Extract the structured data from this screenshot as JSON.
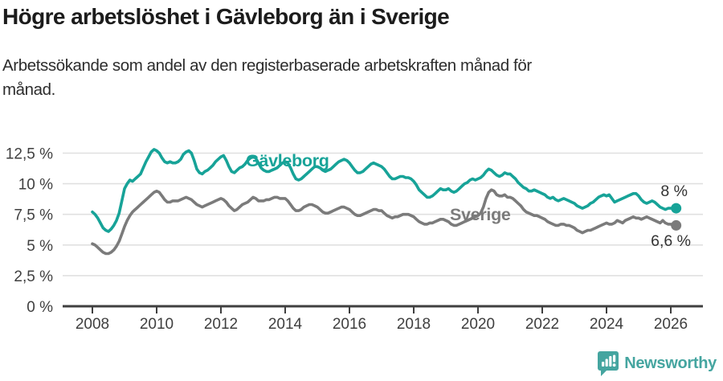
{
  "header": {
    "title": "Högre arbetslöshet i Gävleborg än i Sverige",
    "subtitle_line1": "Arbetssökande som andel av den registerbaserade arbetskraften månad för",
    "subtitle_line2": "månad."
  },
  "footer": {
    "brand": "Newsworthy",
    "logo_icon": "speech-bubble-bar-chart-icon"
  },
  "colors": {
    "gavleborg_teal": "#17A398",
    "sverige_gray": "#7B7B7B",
    "grid": "#E0E0E0",
    "axis": "#3F3F3F",
    "tick_text": "#3F3F3F",
    "end_label_text": "#333333",
    "logo_teal": "#45A5A0"
  },
  "chart_data": {
    "type": "line",
    "title": "Högre arbetslöshet i Gävleborg än i Sverige",
    "subtitle": "Arbetssökande som andel av den registerbaserade arbetskraften månad för månad.",
    "xlabel": "",
    "ylabel": "",
    "frequency": "monthly",
    "x_start": "2008-01",
    "x_end": "2026-03",
    "x_tick_years": [
      2008,
      2010,
      2012,
      2014,
      2016,
      2018,
      2020,
      2022,
      2024,
      2026
    ],
    "y_tick_labels": [
      "0 %",
      "2,5 %",
      "5 %",
      "7,5 %",
      "10 %",
      "12,5 %"
    ],
    "y_tick_values": [
      0,
      2.5,
      5,
      7.5,
      10,
      12.5
    ],
    "ylim": [
      0,
      13.5
    ],
    "grid": true,
    "legend_position": "inline-labels",
    "series": [
      {
        "name": "Gävleborg",
        "color": "#17A398",
        "end_label": "8 %",
        "last_value": 8.0,
        "values": [
          7.7,
          7.5,
          7.2,
          6.8,
          6.4,
          6.2,
          6.1,
          6.3,
          6.6,
          7.0,
          7.6,
          8.6,
          9.6,
          10.0,
          10.3,
          10.2,
          10.4,
          10.6,
          10.8,
          11.3,
          11.8,
          12.2,
          12.6,
          12.8,
          12.7,
          12.5,
          12.1,
          11.8,
          11.7,
          11.8,
          11.7,
          11.7,
          11.8,
          12.0,
          12.4,
          12.6,
          12.7,
          12.5,
          11.9,
          11.2,
          10.9,
          10.8,
          11.0,
          11.1,
          11.3,
          11.5,
          11.8,
          12.0,
          12.2,
          12.3,
          11.9,
          11.4,
          11.0,
          10.9,
          11.1,
          11.3,
          11.4,
          11.6,
          11.9,
          12.1,
          12.2,
          12.1,
          11.7,
          11.3,
          11.1,
          11.0,
          11.0,
          11.1,
          11.2,
          11.3,
          11.5,
          11.7,
          11.8,
          11.7,
          11.3,
          10.8,
          10.4,
          10.3,
          10.4,
          10.6,
          10.8,
          11.0,
          11.2,
          11.4,
          11.4,
          11.3,
          11.1,
          11.0,
          11.1,
          11.2,
          11.4,
          11.6,
          11.8,
          11.9,
          12.0,
          11.9,
          11.7,
          11.4,
          11.1,
          10.9,
          10.9,
          11.0,
          11.2,
          11.4,
          11.6,
          11.7,
          11.6,
          11.5,
          11.4,
          11.2,
          10.9,
          10.6,
          10.4,
          10.4,
          10.5,
          10.6,
          10.6,
          10.5,
          10.5,
          10.4,
          10.2,
          9.9,
          9.5,
          9.3,
          9.1,
          8.9,
          8.9,
          9.0,
          9.2,
          9.4,
          9.6,
          9.5,
          9.5,
          9.6,
          9.4,
          9.3,
          9.4,
          9.6,
          9.8,
          10.0,
          10.1,
          10.3,
          10.4,
          10.3,
          10.4,
          10.5,
          10.7,
          11.0,
          11.2,
          11.1,
          10.9,
          10.7,
          10.6,
          10.7,
          10.9,
          10.8,
          10.8,
          10.6,
          10.4,
          10.1,
          9.9,
          9.7,
          9.6,
          9.4,
          9.4,
          9.5,
          9.4,
          9.3,
          9.2,
          9.1,
          8.9,
          8.8,
          8.9,
          8.7,
          8.6,
          8.7,
          8.8,
          8.7,
          8.6,
          8.5,
          8.4,
          8.2,
          8.1,
          8.0,
          8.1,
          8.2,
          8.4,
          8.5,
          8.7,
          8.9,
          9.0,
          9.1,
          9.0,
          9.1,
          8.8,
          8.5,
          8.6,
          8.7,
          8.8,
          8.9,
          9.0,
          9.1,
          9.2,
          9.2,
          9.0,
          8.7,
          8.5,
          8.4,
          8.5,
          8.6,
          8.5,
          8.3,
          8.1,
          8.0,
          7.9,
          8.0,
          8.0,
          8.0,
          8.0
        ]
      },
      {
        "name": "Sverige",
        "color": "#7B7B7B",
        "end_label": "6,6 %",
        "last_value": 6.6,
        "values": [
          5.1,
          5.0,
          4.8,
          4.6,
          4.4,
          4.3,
          4.3,
          4.4,
          4.6,
          4.9,
          5.3,
          5.9,
          6.5,
          7.0,
          7.4,
          7.7,
          7.9,
          8.1,
          8.3,
          8.5,
          8.7,
          8.9,
          9.1,
          9.3,
          9.4,
          9.3,
          9.0,
          8.7,
          8.5,
          8.5,
          8.6,
          8.6,
          8.6,
          8.7,
          8.8,
          8.9,
          8.8,
          8.7,
          8.5,
          8.3,
          8.2,
          8.1,
          8.2,
          8.3,
          8.4,
          8.5,
          8.6,
          8.7,
          8.8,
          8.7,
          8.5,
          8.2,
          8.0,
          7.8,
          7.9,
          8.1,
          8.3,
          8.4,
          8.5,
          8.7,
          8.9,
          8.8,
          8.6,
          8.6,
          8.6,
          8.7,
          8.7,
          8.8,
          8.9,
          8.9,
          8.8,
          8.8,
          8.8,
          8.6,
          8.3,
          8.0,
          7.8,
          7.8,
          7.9,
          8.1,
          8.2,
          8.3,
          8.3,
          8.2,
          8.1,
          7.9,
          7.7,
          7.6,
          7.6,
          7.7,
          7.8,
          7.9,
          8.0,
          8.1,
          8.1,
          8.0,
          7.9,
          7.7,
          7.5,
          7.4,
          7.4,
          7.5,
          7.6,
          7.7,
          7.8,
          7.9,
          7.9,
          7.8,
          7.8,
          7.6,
          7.4,
          7.3,
          7.2,
          7.3,
          7.3,
          7.4,
          7.5,
          7.5,
          7.5,
          7.4,
          7.3,
          7.1,
          6.9,
          6.8,
          6.7,
          6.7,
          6.8,
          6.8,
          6.9,
          7.0,
          7.1,
          7.1,
          7.0,
          6.9,
          6.7,
          6.6,
          6.6,
          6.7,
          6.8,
          6.9,
          7.0,
          7.1,
          7.2,
          7.3,
          7.4,
          7.6,
          8.1,
          8.8,
          9.3,
          9.5,
          9.4,
          9.1,
          9.0,
          9.0,
          9.1,
          8.9,
          8.9,
          8.8,
          8.6,
          8.4,
          8.2,
          7.9,
          7.7,
          7.6,
          7.5,
          7.4,
          7.4,
          7.3,
          7.2,
          7.1,
          6.9,
          6.8,
          6.7,
          6.6,
          6.6,
          6.7,
          6.7,
          6.6,
          6.6,
          6.5,
          6.4,
          6.2,
          6.1,
          6.0,
          6.1,
          6.2,
          6.2,
          6.3,
          6.4,
          6.5,
          6.6,
          6.7,
          6.8,
          6.7,
          6.7,
          6.8,
          7.0,
          6.9,
          6.8,
          7.0,
          7.1,
          7.2,
          7.3,
          7.2,
          7.2,
          7.1,
          7.2,
          7.3,
          7.2,
          7.1,
          7.0,
          6.9,
          6.8,
          7.0,
          6.8,
          6.7,
          6.7,
          6.6,
          6.6
        ]
      }
    ]
  }
}
